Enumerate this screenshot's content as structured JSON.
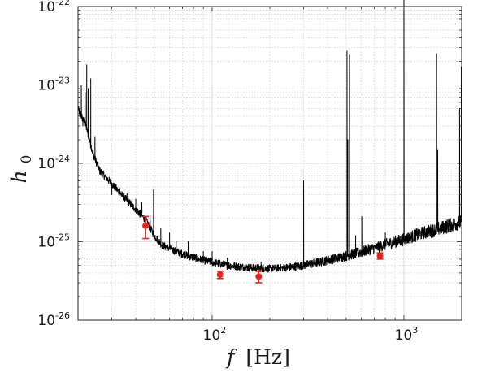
{
  "chart_data": {
    "type": "line",
    "title": "",
    "xlabel": "f [Hz]",
    "xlabel_var": "f",
    "xlabel_unit": "[Hz]",
    "ylabel": "h0",
    "ylabel_var": "h",
    "ylabel_sub": "0",
    "xscale": "log",
    "yscale": "log",
    "xlim": [
      20,
      2000
    ],
    "ylim": [
      1e-26,
      1e-22
    ],
    "grid": true,
    "x_ticks": [
      {
        "value": 100,
        "base": "10",
        "exp": "2"
      },
      {
        "value": 1000,
        "base": "10",
        "exp": "3"
      }
    ],
    "y_ticks": [
      {
        "value": 1e-26,
        "base": "10",
        "exp": "-26"
      },
      {
        "value": 1e-25,
        "base": "10",
        "exp": "-25"
      },
      {
        "value": 1e-24,
        "base": "10",
        "exp": "-24"
      },
      {
        "value": 1e-23,
        "base": "10",
        "exp": "-23"
      },
      {
        "value": 1e-22,
        "base": "10",
        "exp": "-22"
      }
    ],
    "colors": {
      "curve": "#000000",
      "markers": "#e8221c",
      "grid": "#d4d4d4"
    },
    "sensitivity_curve": {
      "baseline": [
        [
          20,
          5e-24
        ],
        [
          22,
          3e-24
        ],
        [
          24,
          1.3e-24
        ],
        [
          26,
          8e-25
        ],
        [
          30,
          5.5e-25
        ],
        [
          35,
          3.6e-25
        ],
        [
          40,
          2.6e-25
        ],
        [
          45,
          1.9e-25
        ],
        [
          50,
          1.2e-25
        ],
        [
          55,
          9e-26
        ],
        [
          60,
          8.2e-26
        ],
        [
          70,
          7e-26
        ],
        [
          80,
          6.3e-26
        ],
        [
          90,
          5.8e-26
        ],
        [
          100,
          5.5e-26
        ],
        [
          120,
          5e-26
        ],
        [
          150,
          4.7e-26
        ],
        [
          200,
          4.55e-26
        ],
        [
          250,
          4.7e-26
        ],
        [
          300,
          5e-26
        ],
        [
          400,
          5.8e-26
        ],
        [
          500,
          6.6e-26
        ],
        [
          600,
          7.4e-26
        ],
        [
          800,
          9.2e-26
        ],
        [
          1000,
          1.07e-25
        ],
        [
          1200,
          1.25e-25
        ],
        [
          1500,
          1.45e-25
        ],
        [
          1800,
          1.65e-25
        ],
        [
          2000,
          1.8e-25
        ]
      ],
      "lines": [
        [
          20.4,
          4e-24
        ],
        [
          20.8,
          1e-23
        ],
        [
          21.2,
          3e-24
        ],
        [
          21.8,
          8e-24
        ],
        [
          22.2,
          1.8e-23
        ],
        [
          22.6,
          9e-24
        ],
        [
          23.3,
          1.2e-23
        ],
        [
          24.5,
          2.2e-24
        ],
        [
          28,
          6e-25
        ],
        [
          30,
          4e-25
        ],
        [
          33,
          4.8e-25
        ],
        [
          36,
          4.2e-25
        ],
        [
          40,
          3.5e-25
        ],
        [
          43,
          3.2e-25
        ],
        [
          47.5,
          2.2e-25
        ],
        [
          49.5,
          4.6e-25
        ],
        [
          54,
          1.5e-25
        ],
        [
          60,
          1.3e-25
        ],
        [
          65,
          1e-25
        ],
        [
          75,
          1e-25
        ],
        [
          90,
          7.5e-26
        ],
        [
          100,
          7.5e-26
        ],
        [
          120,
          6.2e-26
        ],
        [
          180,
          5.5e-26
        ],
        [
          300,
          6e-25
        ],
        [
          505,
          2.7e-23
        ],
        [
          510,
          2e-24
        ],
        [
          520,
          2.4e-23
        ],
        [
          560,
          1.2e-25
        ],
        [
          603,
          2.1e-25
        ],
        [
          800,
          1.3e-25
        ],
        [
          1000,
          1.4e-22
        ],
        [
          1480,
          2.5e-23
        ],
        [
          1500,
          1.5e-24
        ],
        [
          1950,
          5e-24
        ],
        [
          1990,
          1.7e-23
        ]
      ]
    },
    "markers": [
      {
        "x": 45,
        "y": 1.6e-25,
        "err_low": 1.1e-25,
        "err_high": 2.1e-25
      },
      {
        "x": 110,
        "y": 3.8e-26,
        "err_low": 3.4e-26,
        "err_high": 4.2e-26
      },
      {
        "x": 175,
        "y": 3.6e-26,
        "err_low": 3e-26,
        "err_high": 4.2e-26
      },
      {
        "x": 750,
        "y": 6.6e-26,
        "err_low": 6e-26,
        "err_high": 7.2e-26
      }
    ]
  }
}
